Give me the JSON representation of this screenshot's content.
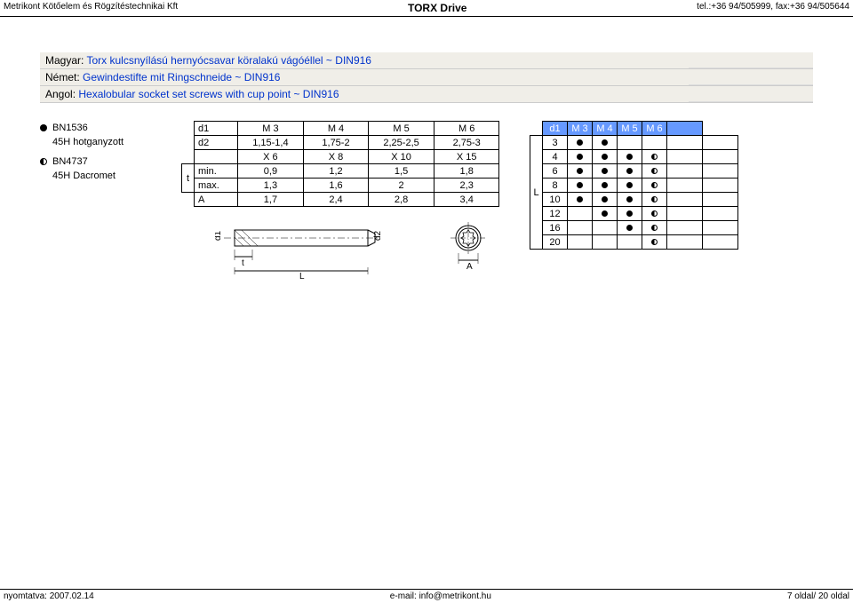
{
  "header": {
    "left": "Metrikont Kötőelem és Rögzítéstechnikai Kft",
    "center": "TORX Drive",
    "right": "tel.:+36 94/505999, fax:+36 94/505644"
  },
  "title": {
    "hu_prefix": "Magyar: ",
    "hu_text": "Torx kulcsnyílású hernyócsavar köralakú vágóéllel ~ DIN916",
    "de_prefix": "Német: ",
    "de_text": "Gewindestifte mit Ringschneide ~ DIN916",
    "en_prefix": "Angol: ",
    "en_text": "Hexalobular socket set screws with cup point ~ DIN916"
  },
  "legend": [
    {
      "marker": "dot",
      "code": "BN1536",
      "desc": "45H hotganyzott"
    },
    {
      "marker": "half",
      "code": "BN4737",
      "desc": "45H Dacromet"
    }
  ],
  "spec": {
    "headers": [
      "d1",
      "M 3",
      "M 4",
      "M 5",
      "M 6"
    ],
    "rows": [
      {
        "label": "d2",
        "t": "",
        "vals": [
          "1,15-1,4",
          "1,75-2",
          "2,25-2,5",
          "2,75-3"
        ]
      },
      {
        "label": "",
        "t": "",
        "vals": [
          "X 6",
          "X 8",
          "X 10",
          "X 15"
        ]
      },
      {
        "label": "min.",
        "t": "t",
        "vals": [
          "0,9",
          "1,2",
          "1,5",
          "1,8"
        ]
      },
      {
        "label": "max.",
        "t": "",
        "vals": [
          "1,3",
          "1,6",
          "2",
          "2,3"
        ]
      },
      {
        "label": "A",
        "t": "",
        "vals": [
          "1,7",
          "2,4",
          "2,8",
          "3,4"
        ]
      }
    ]
  },
  "avail": {
    "colHeaders": [
      "d1",
      "M 3",
      "M 4",
      "M 5",
      "M 6",
      ""
    ],
    "Llabel": "L",
    "rows": [
      {
        "len": "3",
        "cells": [
          "dot",
          "dot",
          "",
          "",
          ""
        ]
      },
      {
        "len": "4",
        "cells": [
          "dot",
          "dot",
          "dot",
          "half",
          ""
        ]
      },
      {
        "len": "6",
        "cells": [
          "dot",
          "dot",
          "dot",
          "half",
          ""
        ]
      },
      {
        "len": "8",
        "cells": [
          "dot",
          "dot",
          "dot",
          "half",
          ""
        ]
      },
      {
        "len": "10",
        "cells": [
          "dot",
          "dot",
          "dot",
          "half",
          ""
        ]
      },
      {
        "len": "12",
        "cells": [
          "",
          "dot",
          "dot",
          "half",
          ""
        ]
      },
      {
        "len": "16",
        "cells": [
          "",
          "",
          "dot",
          "half",
          ""
        ]
      },
      {
        "len": "20",
        "cells": [
          "",
          "",
          "",
          "half",
          ""
        ]
      }
    ]
  },
  "diagram": {
    "d1": "d1",
    "d2": "d2",
    "t": "t",
    "L": "L",
    "A": "A"
  },
  "footer": {
    "left": "nyomtatva: 2007.02.14",
    "center": "e-mail: info@metrikont.hu",
    "right": "7 oldal/ 20 oldal"
  },
  "colors": {
    "header_blue": "#6699ff",
    "title_bg": "#f0eee8",
    "link_blue": "#0033cc"
  }
}
